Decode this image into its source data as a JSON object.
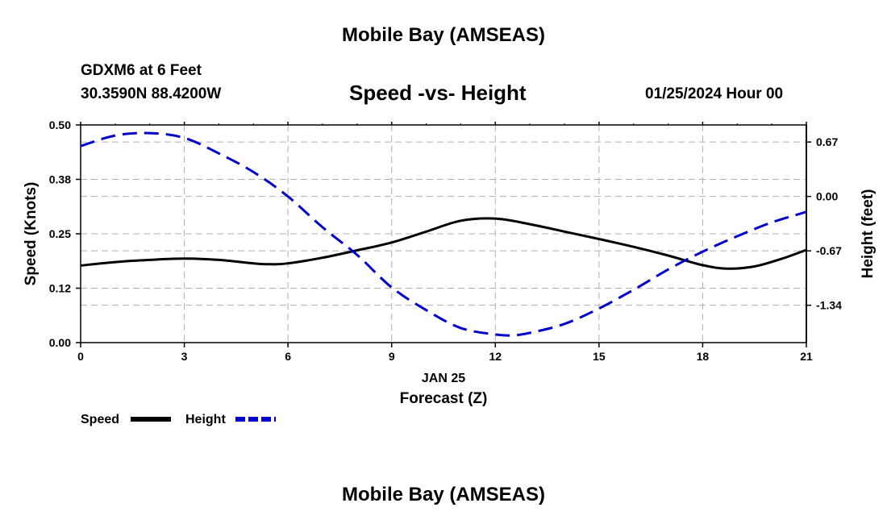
{
  "page": {
    "top_title": "Mobile Bay (AMSEAS)",
    "bottom_title": "Mobile Bay (AMSEAS)",
    "station": "GDXM6 at 6 Feet",
    "coords": "30.3590N  88.4200W",
    "datetime": "01/25/2024 Hour 00"
  },
  "chart_data": {
    "type": "line",
    "title": "Speed -vs- Height",
    "xlabel": "Forecast (Z)",
    "date_label": "JAN 25",
    "ylabel_left": "Speed (Knots)",
    "ylabel_right": "Height (feet)",
    "xlim": [
      0,
      21
    ],
    "ylim_left": [
      0,
      0.5
    ],
    "ylim_right": [
      -1.8,
      0.88
    ],
    "x_ticks": [
      "0",
      "3",
      "6",
      "9",
      "12",
      "15",
      "18",
      "21"
    ],
    "x_tick_values": [
      0,
      3,
      6,
      9,
      12,
      15,
      18,
      21
    ],
    "y_left_ticks": [
      "0.00",
      "0.12",
      "0.25",
      "0.38",
      "0.50"
    ],
    "y_left_tick_values": [
      0,
      0.125,
      0.25,
      0.375,
      0.5
    ],
    "y_right_ticks": [
      "-1.34",
      "-0.67",
      "0.00",
      "0.67"
    ],
    "y_right_tick_values": [
      -1.34,
      -0.67,
      0.0,
      0.67
    ],
    "grid": true,
    "series": [
      {
        "name": "Speed",
        "axis": "left",
        "color": "#000000",
        "style": "solid",
        "x": [
          0,
          1,
          2,
          3,
          4,
          5,
          5.5,
          6,
          7,
          8,
          9,
          10,
          11,
          12,
          13,
          14,
          15,
          16,
          17,
          18,
          18.7,
          19.5,
          20.3,
          21
        ],
        "y": [
          0.177,
          0.185,
          0.19,
          0.193,
          0.19,
          0.182,
          0.18,
          0.182,
          0.195,
          0.212,
          0.23,
          0.255,
          0.28,
          0.285,
          0.272,
          0.255,
          0.238,
          0.22,
          0.2,
          0.178,
          0.17,
          0.175,
          0.193,
          0.213
        ]
      },
      {
        "name": "Height",
        "axis": "right",
        "color": "#0000cc",
        "style": "dashed",
        "x": [
          0,
          1,
          2,
          3,
          4,
          5,
          6,
          7,
          8,
          9,
          10,
          11,
          12,
          12.5,
          13,
          14,
          15,
          16,
          17,
          18,
          19,
          20,
          21
        ],
        "y": [
          0.62,
          0.75,
          0.78,
          0.72,
          0.53,
          0.3,
          0.0,
          -0.38,
          -0.72,
          -1.12,
          -1.4,
          -1.62,
          -1.7,
          -1.71,
          -1.68,
          -1.57,
          -1.38,
          -1.15,
          -0.9,
          -0.68,
          -0.49,
          -0.32,
          -0.19
        ]
      }
    ],
    "legend": [
      {
        "label": "Speed",
        "color": "#000000",
        "style": "solid"
      },
      {
        "label": "Height",
        "color": "#0000cc",
        "style": "dashed"
      }
    ]
  }
}
